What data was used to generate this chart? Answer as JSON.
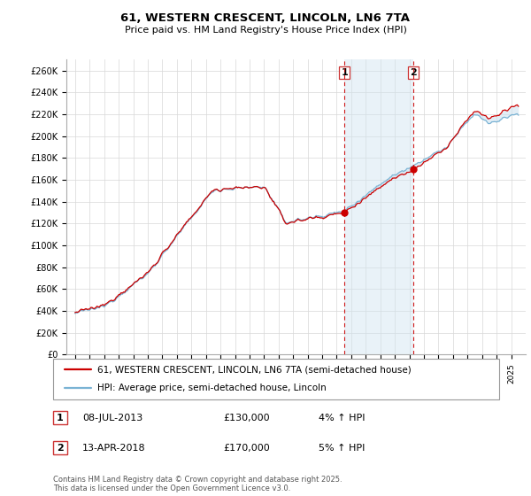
{
  "title": "61, WESTERN CRESCENT, LINCOLN, LN6 7TA",
  "subtitle": "Price paid vs. HM Land Registry's House Price Index (HPI)",
  "address_label": "61, WESTERN CRESCENT, LINCOLN, LN6 7TA (semi-detached house)",
  "hpi_label": "HPI: Average price, semi-detached house, Lincoln",
  "footnote": "Contains HM Land Registry data © Crown copyright and database right 2025.\nThis data is licensed under the Open Government Licence v3.0.",
  "sale1_date": "08-JUL-2013",
  "sale1_price": 130000,
  "sale1_pct": "4%",
  "sale2_date": "13-APR-2018",
  "sale2_price": 170000,
  "sale2_pct": "5%",
  "ylim": [
    0,
    270000
  ],
  "yticks": [
    0,
    20000,
    40000,
    60000,
    80000,
    100000,
    120000,
    140000,
    160000,
    180000,
    200000,
    220000,
    240000,
    260000
  ],
  "xstart": 1995,
  "xend": 2025,
  "hpi_color": "#7ab3d4",
  "price_color": "#cc0000",
  "shade_color": "#d0e4f0",
  "vline_color": "#cc0000",
  "plot_bg": "#ffffff"
}
